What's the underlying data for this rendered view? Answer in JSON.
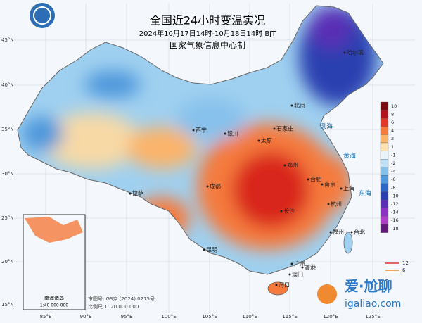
{
  "header": {
    "title": "全国近24小时变温实况",
    "subtitle": "2024年10月17日14时-10月18日14时 BJT",
    "issuer": "国家气象信息中心制"
  },
  "lat_labels": [
    "45°N",
    "40°N",
    "35°N",
    "30°N",
    "25°N",
    "20°N",
    "15°N"
  ],
  "lon_labels": [
    "85°E",
    "90°E",
    "95°E",
    "100°E",
    "105°E",
    "110°E",
    "115°E",
    "120°E",
    "125°E"
  ],
  "legend": {
    "levels": [
      {
        "value": 10,
        "color": "#7a0a10"
      },
      {
        "value": 8,
        "color": "#b3141b"
      },
      {
        "value": 6,
        "color": "#e2382a"
      },
      {
        "value": 4,
        "color": "#f57a3c"
      },
      {
        "value": 2,
        "color": "#fbb46a"
      },
      {
        "value": 1,
        "color": "#fde2b0"
      },
      {
        "value": -1,
        "color": "#e9f3fb"
      },
      {
        "value": -2,
        "color": "#bfe0f5"
      },
      {
        "value": -4,
        "color": "#86c1ec"
      },
      {
        "value": -6,
        "color": "#4f98dc"
      },
      {
        "value": -8,
        "color": "#2c66c6"
      },
      {
        "value": -10,
        "color": "#2a3fb0"
      },
      {
        "value": -12,
        "color": "#5a2fb5"
      },
      {
        "value": -14,
        "color": "#8a33c2"
      },
      {
        "value": -16,
        "color": "#b03fc8"
      },
      {
        "value": -18,
        "color": "#601a7a"
      }
    ],
    "contours": [
      {
        "value": 12,
        "color": "#e03030"
      },
      {
        "value": 6,
        "color": "#f08a30"
      }
    ]
  },
  "cities": [
    "哈尔滨",
    "北京",
    "石家庄",
    "太原",
    "银川",
    "西宁",
    "拉萨",
    "成都",
    "郑州",
    "合肥",
    "南京",
    "上海",
    "杭州",
    "长沙",
    "福州",
    "台北",
    "广州",
    "香港",
    "澳门",
    "海口",
    "昆明"
  ],
  "seas": [
    "渤海",
    "黄海",
    "东海"
  ],
  "inset": {
    "title": "南海诸岛",
    "scale": "1:40 000 000"
  },
  "notes": {
    "approval": "审图号: GS京 (2024) 0275号",
    "scale": "比例尺 1: 20 000 000"
  },
  "watermark": {
    "name": "爱·尬聊",
    "site": "igaliao.com"
  }
}
